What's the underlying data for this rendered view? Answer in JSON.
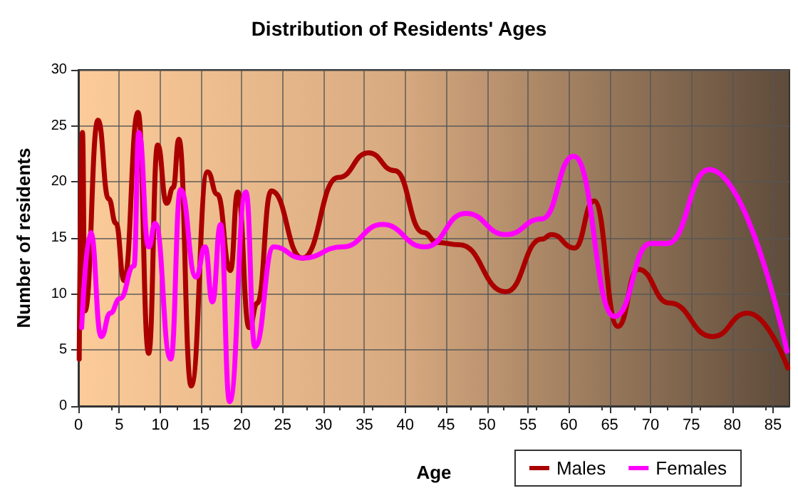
{
  "chart_data": {
    "type": "line",
    "title": "Distribution of Residents' Ages",
    "xlabel": "Age",
    "ylabel": "Number of residents",
    "xlim": [
      0,
      87
    ],
    "xticks": [
      0,
      5,
      10,
      15,
      20,
      25,
      30,
      35,
      40,
      45,
      50,
      55,
      60,
      65,
      70,
      75,
      80,
      85
    ],
    "ylim": [
      0,
      30
    ],
    "yticks": [
      0,
      5,
      10,
      15,
      20,
      25,
      30
    ],
    "grid": true,
    "legend": "bottom right",
    "marker": "none",
    "line_style": "solid",
    "series": [
      {
        "name": "Males",
        "color": "#aa0000",
        "x": [
          0.1,
          0.5,
          0.8,
          2.4,
          3.7,
          4.6,
          5.6,
          7.3,
          8.6,
          9.7,
          10.8,
          11.6,
          12.3,
          13.8,
          15.8,
          17,
          18.6,
          19.5,
          20.9,
          21.9,
          23.6,
          27.4,
          31.8,
          35.5,
          38.7,
          42.2,
          43.9,
          46.6,
          52.3,
          56.7,
          57.9,
          60.7,
          63.1,
          66,
          68.5,
          72.3,
          77.6,
          81.9,
          86.8
        ],
        "values": [
          4.2,
          24.4,
          8.5,
          25.5,
          18.5,
          16.3,
          11.2,
          26.2,
          4.7,
          23.3,
          18.1,
          19.5,
          23.8,
          1.8,
          20.9,
          18.9,
          12.1,
          19.1,
          7,
          9.2,
          19.2,
          13.2,
          20.4,
          22.6,
          21,
          15.5,
          14.6,
          14.4,
          10.2,
          14.9,
          15.3,
          14.1,
          18.3,
          7.1,
          12.2,
          9.2,
          6.2,
          8.3,
          3.4
        ]
      },
      {
        "name": "Females",
        "color": "#ff00ff",
        "x": [
          0.4,
          1.5,
          2.8,
          3.9,
          5.1,
          6.8,
          7.4,
          8.6,
          9.4,
          11.3,
          12.5,
          14.4,
          15.5,
          16.4,
          17.4,
          18.5,
          20.5,
          21.6,
          23.9,
          27.4,
          32.3,
          37.2,
          42.4,
          47.4,
          52.3,
          56.7,
          60.6,
          65.6,
          70,
          72,
          77.2,
          86.7
        ],
        "values": [
          7,
          15.5,
          6.2,
          8.3,
          9.6,
          12.5,
          24.4,
          14.2,
          16.3,
          4.2,
          19.3,
          11.5,
          14.2,
          9.3,
          16.2,
          0.4,
          19.1,
          5.3,
          14.2,
          13.2,
          14.2,
          16.2,
          14.2,
          17.2,
          15.3,
          16.7,
          22.3,
          8,
          14.5,
          14.5,
          21.1,
          4.9
        ]
      }
    ]
  }
}
